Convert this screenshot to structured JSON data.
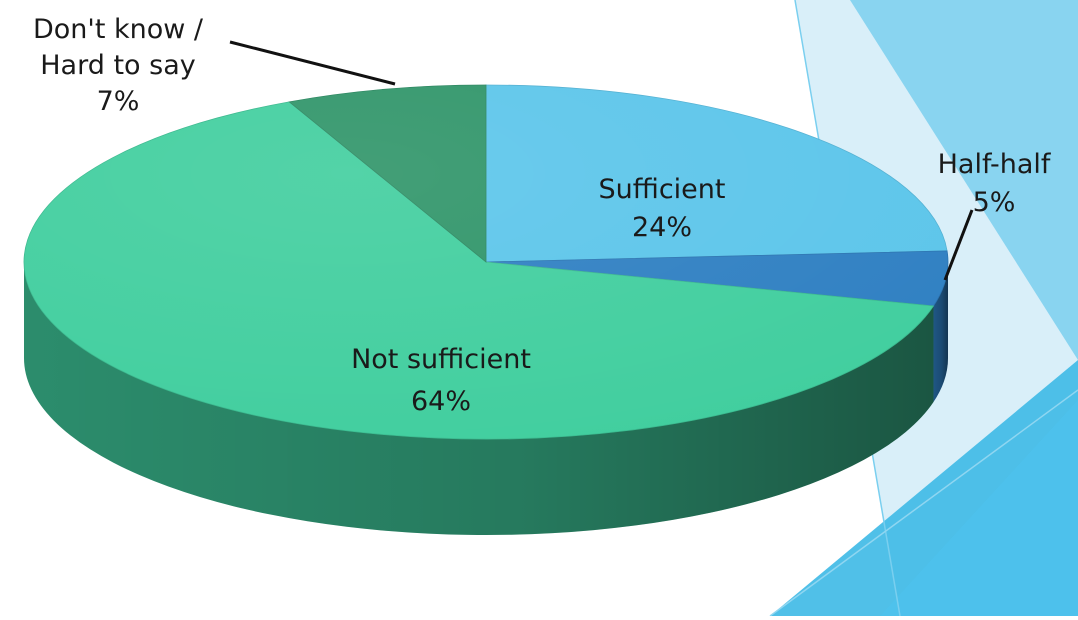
{
  "chart_data": {
    "type": "pie",
    "style": "3d",
    "title": "",
    "slices": [
      {
        "label": "Sufficient",
        "value": 24,
        "value_label": "24%",
        "color": "#5BC5EA"
      },
      {
        "label": "Half-half",
        "value": 5,
        "value_label": "5%",
        "color": "#2E7FC2"
      },
      {
        "label": "Not sufficient",
        "value": 64,
        "value_label": "64%",
        "color": "#40CE9E"
      },
      {
        "label": "Don't know / Hard to say",
        "label_lines": [
          "Don't know /",
          "Hard to say"
        ],
        "value": 7,
        "value_label": "7%",
        "color": "#2E9468"
      }
    ],
    "start_angle_deg": 0,
    "direction": "clockwise"
  },
  "theme": {
    "accent_light": "#BFE6F6",
    "accent_mid": "#7ACFEF",
    "accent_dark": "#3DB9E6"
  }
}
